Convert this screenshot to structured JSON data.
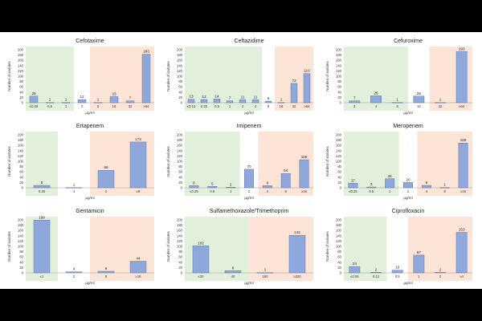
{
  "colors": {
    "bar": "#8fa8dc",
    "bar_stroke": "#4a62a8",
    "susceptible_zone": "#e2efda",
    "resistant_zone": "#fce4d6",
    "background": "#ffffff"
  },
  "chart_data": [
    {
      "type": "bar",
      "title": "Cefotaxime",
      "ylabel": "Number of isolates",
      "xlabel": "µg/ml",
      "ylim": [
        0,
        200
      ],
      "yticks": [
        0,
        20,
        40,
        60,
        80,
        100,
        120,
        140,
        160,
        180,
        200
      ],
      "categories": [
        "≤0.25",
        "0.5",
        "1",
        "2",
        "8",
        "16",
        "32",
        "≥64"
      ],
      "values": [
        25,
        1,
        1,
        12,
        1,
        23,
        7,
        183
      ],
      "zones": [
        {
          "kind": "susceptible",
          "from": 0,
          "to": 2
        },
        {
          "kind": "resistant",
          "from": 4,
          "to": 7
        }
      ]
    },
    {
      "type": "bar",
      "title": "Ceftazidime",
      "ylabel": "Number of isolates",
      "xlabel": "µg/ml",
      "ylim": [
        0,
        200
      ],
      "yticks": [
        0,
        20,
        40,
        60,
        80,
        100,
        120,
        140,
        160,
        180,
        200
      ],
      "categories": [
        "≤0.12",
        "0.25",
        "0.5",
        "1",
        "2",
        "4",
        "8",
        "16",
        "32",
        "≥64"
      ],
      "values": [
        13,
        12,
        14,
        7,
        11,
        11,
        6,
        1,
        73,
        110
      ],
      "zones": [
        {
          "kind": "susceptible",
          "from": 0,
          "to": 5
        },
        {
          "kind": "resistant",
          "from": 7,
          "to": 9
        }
      ]
    },
    {
      "type": "bar",
      "title": "Cefuroxime",
      "ylabel": "Number of isolates",
      "xlabel": "µg/ml",
      "ylim": [
        0,
        200
      ],
      "yticks": [
        0,
        20,
        40,
        60,
        80,
        100,
        120,
        140,
        160,
        180,
        200
      ],
      "categories": [
        "2",
        "4",
        "8",
        "16",
        "32",
        "≥64"
      ],
      "values": [
        7,
        26,
        1,
        25,
        1,
        193
      ],
      "zones": [
        {
          "kind": "susceptible",
          "from": 0,
          "to": 2
        },
        {
          "kind": "resistant",
          "from": 4,
          "to": 5
        }
      ]
    },
    {
      "type": "bar",
      "title": "Ertapenem",
      "ylabel": "Number of isolates",
      "xlabel": "µg/ml",
      "ylim": [
        0,
        200
      ],
      "yticks": [
        0,
        20,
        40,
        60,
        80,
        100,
        120,
        140,
        160,
        180,
        200
      ],
      "categories": [
        "0.25",
        "1",
        "2",
        "≥8"
      ],
      "values": [
        9,
        1,
        66,
        173
      ],
      "zones": [
        {
          "kind": "susceptible",
          "from": 0,
          "to": 0
        },
        {
          "kind": "resistant",
          "from": 2,
          "to": 3
        }
      ]
    },
    {
      "type": "bar",
      "title": "Imipenem",
      "ylabel": "Number of isolates",
      "xlabel": "µg/ml",
      "ylim": [
        0,
        200
      ],
      "yticks": [
        0,
        20,
        40,
        60,
        80,
        100,
        120,
        140,
        160,
        180,
        200
      ],
      "categories": [
        "≤0.25",
        "0.5",
        "1",
        "2",
        "4",
        "8",
        "≥16"
      ],
      "values": [
        8,
        5,
        2,
        70,
        8,
        54,
        106
      ],
      "zones": [
        {
          "kind": "susceptible",
          "from": 0,
          "to": 2
        },
        {
          "kind": "resistant",
          "from": 4,
          "to": 6
        }
      ]
    },
    {
      "type": "bar",
      "title": "Meropenem",
      "ylabel": "Number of isolates",
      "xlabel": "µg/ml",
      "ylim": [
        0,
        200
      ],
      "yticks": [
        0,
        20,
        40,
        60,
        80,
        100,
        120,
        140,
        160,
        180,
        200
      ],
      "categories": [
        "≤0.25",
        "0.5",
        "1",
        "2",
        "4",
        "8",
        "≥16"
      ],
      "values": [
        17,
        3,
        34,
        20,
        9,
        1,
        169
      ],
      "zones": [
        {
          "kind": "susceptible",
          "from": 0,
          "to": 2
        },
        {
          "kind": "resistant",
          "from": 4,
          "to": 6
        }
      ]
    },
    {
      "type": "bar",
      "title": "Gentamicin",
      "ylabel": "Number of isolates",
      "xlabel": "µg/ml",
      "ylim": [
        0,
        200
      ],
      "yticks": [
        0,
        20,
        40,
        60,
        80,
        100,
        120,
        140,
        160,
        180,
        200
      ],
      "categories": [
        "≤1",
        "2",
        "8",
        "≥16"
      ],
      "values": [
        199,
        4,
        6,
        44
      ],
      "zones": [
        {
          "kind": "susceptible",
          "from": 0,
          "to": 0
        },
        {
          "kind": "resistant",
          "from": 2,
          "to": 3
        }
      ]
    },
    {
      "type": "bar",
      "title": "Sulfamethoxazole/Trimethoprim",
      "ylabel": "Number of isolates",
      "xlabel": "µg/ml",
      "ylim": [
        0,
        200
      ],
      "yticks": [
        0,
        20,
        40,
        60,
        80,
        100,
        120,
        140,
        160,
        180,
        200
      ],
      "categories": [
        "≤20",
        "40",
        "160",
        "≥320"
      ],
      "values": [
        102,
        8,
        1,
        142
      ],
      "zones": [
        {
          "kind": "susceptible",
          "from": 0,
          "to": 1
        },
        {
          "kind": "resistant",
          "from": 2,
          "to": 3
        }
      ]
    },
    {
      "type": "bar",
      "title": "Ciprofloxacin",
      "ylabel": "Number of isolates",
      "xlabel": "µg/ml",
      "ylim": [
        0,
        200
      ],
      "yticks": [
        0,
        20,
        40,
        60,
        80,
        100,
        120,
        140,
        160,
        180,
        200
      ],
      "categories": [
        "≤0.06",
        "0.12",
        "0.5",
        "1",
        "2",
        "≥4"
      ],
      "values": [
        24,
        2,
        10,
        67,
        2,
        153
      ],
      "zones": [
        {
          "kind": "susceptible",
          "from": 0,
          "to": 1
        },
        {
          "kind": "resistant",
          "from": 3,
          "to": 5
        }
      ]
    }
  ]
}
